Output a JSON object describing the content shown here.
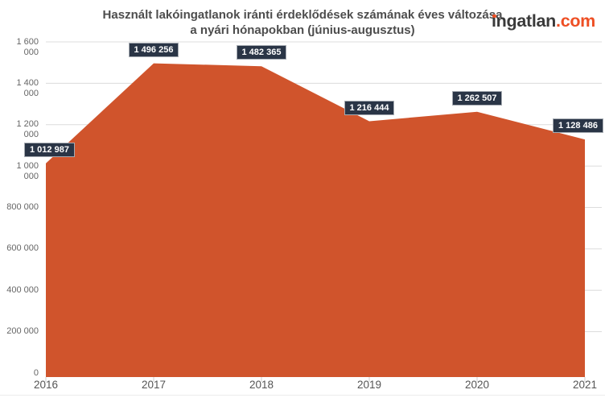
{
  "header": {
    "title_line1": "Használt lakóingatlanok iránti érdeklődések számának éves változása",
    "title_line2": "a nyári hónapokban (június-augusztus)",
    "logo": {
      "brand": "ingatlan",
      "tld": ".com"
    }
  },
  "chart_data": {
    "type": "area",
    "title": "Használt lakóingatlanok iránti érdeklődések számának éves változása a nyári hónapokban (június-augusztus)",
    "categories": [
      "2016",
      "2017",
      "2018",
      "2019",
      "2020",
      "2021"
    ],
    "values": [
      1012987,
      1496256,
      1482365,
      1216444,
      1262507,
      1128486
    ],
    "value_labels": [
      "1 012 987",
      "1 496 256",
      "1 482 365",
      "1 216 444",
      "1 262 507",
      "1 128 486"
    ],
    "xlabel": "",
    "ylabel": "",
    "ylim": [
      0,
      1600000
    ],
    "ytick_step": 200000,
    "ytick_labels": [
      "0",
      "200 000",
      "400 000",
      "600 000",
      "800 000",
      "1 000 000",
      "1 200 000",
      "1 400 000",
      "1 600 000"
    ],
    "grid": true,
    "legend": false,
    "colors": {
      "area_fill": "#d0542c",
      "gridline": "#dcdcdc",
      "axis_tick": "#cfcfcf",
      "label_box_bg": "#2a3546",
      "label_box_border": "#a6abb2",
      "label_text": "#ffffff",
      "title_text": "#4d4d4d",
      "logo_accent": "#ee4f24"
    }
  }
}
